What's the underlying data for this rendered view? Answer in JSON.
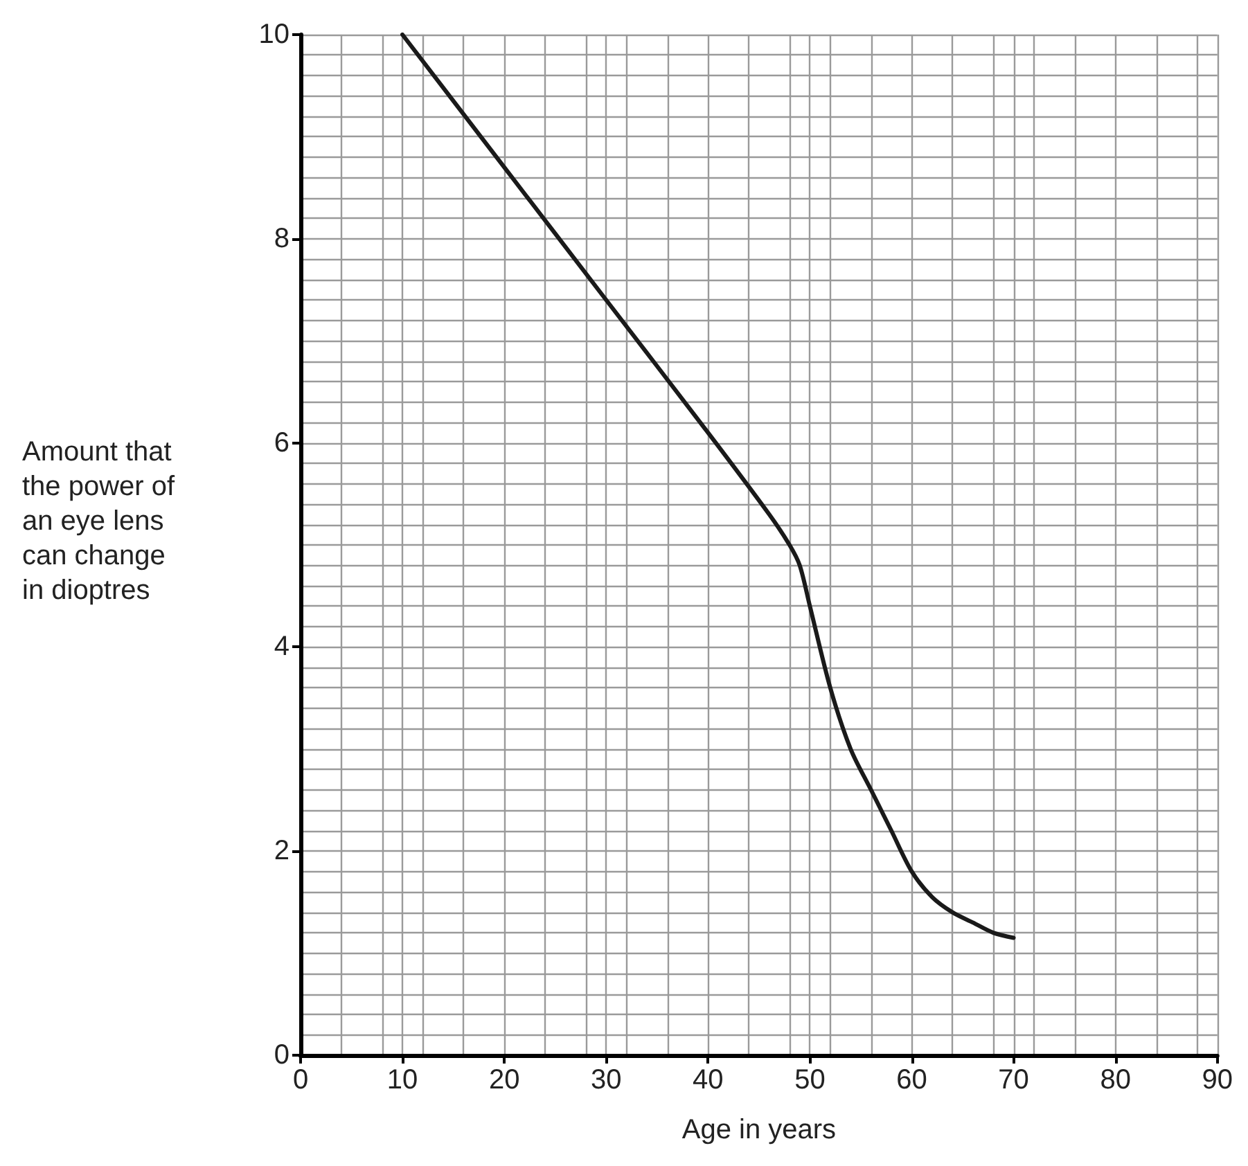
{
  "chart_data": {
    "type": "line",
    "xlabel": "Age in years",
    "ylabel": "Amount that\nthe power of\nan eye lens\ncan change\nin dioptres",
    "x": [
      10,
      20,
      30,
      40,
      46,
      48,
      49,
      50,
      52,
      54,
      56,
      58,
      60,
      62,
      64,
      66,
      68,
      70
    ],
    "series": [
      {
        "color": "#1a1a1a",
        "values": [
          10,
          8.7,
          7.4,
          6.1,
          5.3,
          5.0,
          4.8,
          4.4,
          3.6,
          3.0,
          2.6,
          2.2,
          1.8,
          1.55,
          1.4,
          1.3,
          1.2,
          1.15
        ]
      }
    ],
    "xlim": [
      0,
      90
    ],
    "xticks": [
      0,
      10,
      20,
      30,
      40,
      50,
      60,
      70,
      80,
      90
    ],
    "ylim": [
      0,
      10
    ],
    "yticks": [
      0,
      2,
      4,
      6,
      8,
      10
    ],
    "grid": true,
    "marker": "none",
    "line_style": "solid"
  }
}
